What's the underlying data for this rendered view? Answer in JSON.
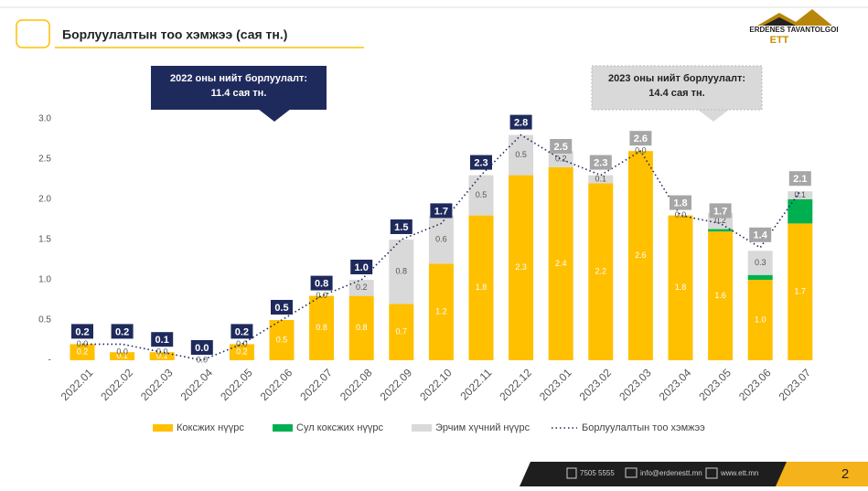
{
  "slide": {
    "title": "Борлуулалтын тоо хэмжээ (сая тн.)",
    "logo_name": "ERDENES TAVANTOLGOI",
    "logo_abbr": "ETT",
    "footer": {
      "phone": "7505 5555",
      "email": "info@erdenestt.mn",
      "web": "www.ett.mn",
      "page": "2"
    }
  },
  "chart_data": {
    "type": "bar",
    "stacked": true,
    "categories": [
      "2022.01",
      "2022.02",
      "2022.03",
      "2022.04",
      "2022.05",
      "2022.06",
      "2022.07",
      "2022.08",
      "2022.09",
      "2022.10",
      "2022.11",
      "2022.12",
      "2023.01",
      "2023.02",
      "2023.03",
      "2023.04",
      "2023.05",
      "2023.06",
      "2023.07"
    ],
    "series": [
      {
        "name": "Коксжих нүүрс",
        "color": "#ffc000",
        "values": [
          0.2,
          0.1,
          0.1,
          0.0,
          0.2,
          0.5,
          0.8,
          0.8,
          0.7,
          1.2,
          1.8,
          2.3,
          2.4,
          2.2,
          2.6,
          1.8,
          1.6,
          1.0,
          1.7
        ],
        "value_labels": [
          "0.2",
          "0.1",
          "0.1",
          "0.0",
          "0.2",
          "0.5",
          "0.8",
          "0.8",
          "0.7",
          "1.2",
          "1.8",
          "2.3",
          "2.4",
          "2.2",
          "2.6",
          "1.8",
          "1.6",
          "1.0",
          "1.7"
        ]
      },
      {
        "name": "Сул коксжих нүүрс",
        "color": "#00b050",
        "values": [
          0,
          0,
          0,
          0,
          0,
          0,
          0,
          0,
          0,
          0,
          0,
          0,
          0,
          0,
          0,
          0,
          0.03,
          0.06,
          0.3
        ]
      },
      {
        "name": "Эрчим хүчний нүүрс",
        "color": "#d9d9d9",
        "values": [
          0,
          0,
          0,
          0,
          0,
          0,
          0,
          0.2,
          0.8,
          0.6,
          0.5,
          0.5,
          0.2,
          0.1,
          0,
          0,
          0.2,
          0.3,
          0.1
        ],
        "value_labels": [
          "0.0",
          "0.0",
          "0.0",
          "0.0",
          "0.0",
          null,
          "0.0",
          "0.2",
          "0.8",
          "0.6",
          "0.5",
          "0.5",
          "0.2",
          "0.1",
          "0.0",
          "0.0",
          "0.2",
          "0.3",
          "0.1"
        ]
      },
      {
        "name": "Борлуулалтын тоо хэмжээ",
        "type": "line",
        "color": "#1f2a5c",
        "values": [
          0.2,
          0.2,
          0.1,
          0.0,
          0.2,
          0.5,
          0.8,
          1.0,
          1.5,
          1.7,
          2.3,
          2.8,
          2.5,
          2.3,
          2.6,
          1.8,
          1.7,
          1.4,
          2.1
        ],
        "value_labels": [
          "0.2",
          "0.2",
          "0.1",
          "0.0",
          "0.2",
          "0.5",
          "0.8",
          "1.0",
          "1.5",
          "1.7",
          "2.3",
          "2.8",
          "2.5",
          "2.3",
          "2.6",
          "1.8",
          "1.7",
          "1.4",
          "2.1"
        ]
      }
    ],
    "ylim": [
      0,
      3
    ],
    "yticks": [
      {
        "value": 0,
        "label": "-"
      },
      0.5,
      {
        "value": 1,
        "label": "1.0"
      },
      1.5,
      {
        "value": 2,
        "label": "2.0"
      },
      2.5,
      {
        "value": 3,
        "label": "3.0"
      }
    ],
    "annotations": [
      {
        "lines": [
          "2022 оны нийт борлуулалт:",
          "11.4 сая тн."
        ]
      },
      {
        "lines": [
          "2023 оны нийт борлуулалт:",
          "14.4 сая тн."
        ]
      }
    ]
  }
}
